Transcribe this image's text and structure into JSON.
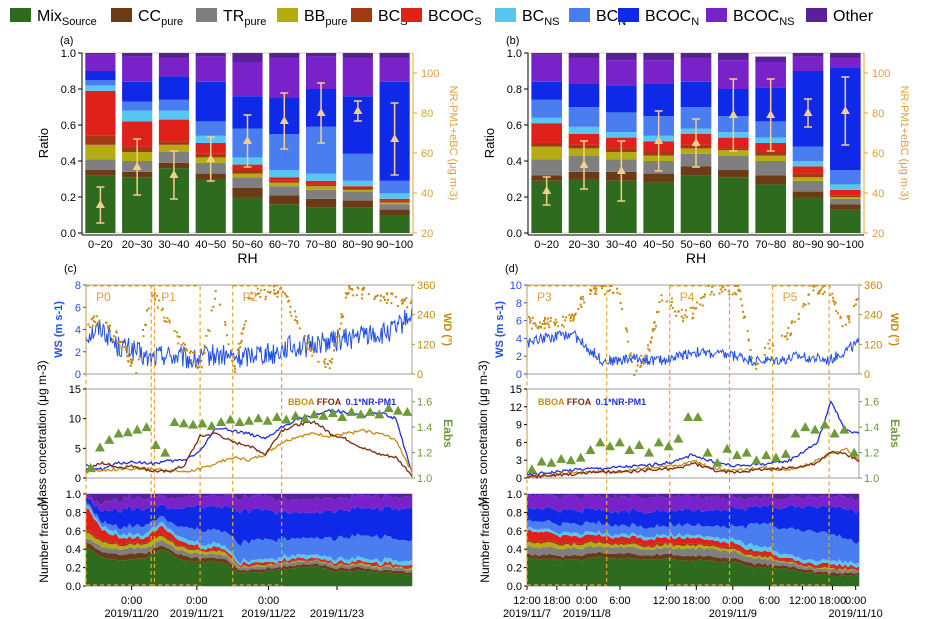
{
  "legend": [
    {
      "label": "Mix",
      "sub": "Source",
      "color": "#2e6b1f"
    },
    {
      "label": "CC",
      "sub": "pure",
      "color": "#6b3a17"
    },
    {
      "label": "TR",
      "sub": "pure",
      "color": "#7f7f7f"
    },
    {
      "label": "BB",
      "sub": "pure",
      "color": "#b4ac10"
    },
    {
      "label": "BC",
      "sub": "S",
      "color": "#a13a13"
    },
    {
      "label": "BCOC",
      "sub": "S",
      "color": "#e0201b"
    },
    {
      "label": "BC",
      "sub": "NS",
      "color": "#58c6f2"
    },
    {
      "label": "BC",
      "sub": "N",
      "color": "#4a7ef0"
    },
    {
      "label": "BCOC",
      "sub": "N",
      "color": "#0f29e8"
    },
    {
      "label": "BCOC",
      "sub": "NS",
      "color": "#7a22c9"
    },
    {
      "label": "Other",
      "sub": "",
      "color": "#5a209a"
    }
  ],
  "panel_labels": {
    "a": "(a)",
    "b": "(b)",
    "c": "(c)",
    "d": "(d)"
  },
  "chart_data": [
    {
      "id": "a",
      "type": "bar",
      "stacked": true,
      "categories": [
        "0~20",
        "20~30",
        "30~40",
        "40~50",
        "50~60",
        "60~70",
        "70~80",
        "80~90",
        "90~100"
      ],
      "xlabel": "RH",
      "ylabel": "Ratio",
      "ylim": [
        0,
        1.0
      ],
      "yticks": [
        "0.0",
        "0.2",
        "0.4",
        "0.6",
        "0.8",
        "1.0"
      ],
      "y2label": "NR-PM1+eBC (μg m-3)",
      "y2lim": [
        20,
        110
      ],
      "y2ticks": [
        "20",
        "40",
        "60",
        "80",
        "100"
      ],
      "series": [
        {
          "name": "MixSource",
          "values": [
            0.32,
            0.31,
            0.36,
            0.3,
            0.2,
            0.16,
            0.14,
            0.14,
            0.1
          ]
        },
        {
          "name": "CCpure",
          "values": [
            0.03,
            0.03,
            0.03,
            0.03,
            0.05,
            0.05,
            0.05,
            0.04,
            0.03
          ]
        },
        {
          "name": "TRpure",
          "values": [
            0.06,
            0.06,
            0.06,
            0.06,
            0.06,
            0.05,
            0.05,
            0.05,
            0.03
          ]
        },
        {
          "name": "BBpure",
          "values": [
            0.08,
            0.05,
            0.04,
            0.03,
            0.02,
            0.02,
            0.02,
            0.01,
            0.01
          ]
        },
        {
          "name": "BCS",
          "values": [
            0.05,
            0.03,
            0.02,
            0.02,
            0.02,
            0.01,
            0.01,
            0.01,
            0.01
          ]
        },
        {
          "name": "BCOCS",
          "values": [
            0.25,
            0.14,
            0.12,
            0.06,
            0.03,
            0.02,
            0.02,
            0.01,
            0.01
          ]
        },
        {
          "name": "BCNS",
          "values": [
            0.03,
            0.06,
            0.05,
            0.04,
            0.04,
            0.04,
            0.04,
            0.03,
            0.03
          ]
        },
        {
          "name": "BCN",
          "values": [
            0.03,
            0.05,
            0.06,
            0.08,
            0.16,
            0.2,
            0.26,
            0.15,
            0.07
          ]
        },
        {
          "name": "BCOCN",
          "values": [
            0.05,
            0.11,
            0.13,
            0.22,
            0.18,
            0.2,
            0.21,
            0.32,
            0.55
          ]
        },
        {
          "name": "BCOCNS",
          "values": [
            0.09,
            0.14,
            0.1,
            0.14,
            0.19,
            0.22,
            0.18,
            0.21,
            0.13
          ]
        },
        {
          "name": "Other",
          "values": [
            0.01,
            0.02,
            0.03,
            0.02,
            0.05,
            0.03,
            0.02,
            0.03,
            0.03
          ]
        }
      ],
      "secondary": {
        "mean": [
          34,
          53,
          49,
          57,
          66,
          76,
          80,
          81,
          67
        ],
        "err": [
          9,
          14,
          12,
          11,
          13,
          14,
          15,
          5,
          18
        ]
      }
    },
    {
      "id": "b",
      "type": "bar",
      "stacked": true,
      "categories": [
        "0~20",
        "20~30",
        "30~40",
        "40~50",
        "50~60",
        "60~70",
        "70~80",
        "80~90",
        "90~100"
      ],
      "xlabel": "RH",
      "ylabel": "Ratio",
      "ylim": [
        0,
        1.0
      ],
      "yticks": [
        "0.0",
        "0.2",
        "0.4",
        "0.6",
        "0.8",
        "1.0"
      ],
      "y2label": "NR-PM1+eBC (μg m-3)",
      "y2lim": [
        20,
        110
      ],
      "y2ticks": [
        "20",
        "40",
        "60",
        "80",
        "100"
      ],
      "series": [
        {
          "name": "MixSource",
          "values": [
            0.29,
            0.3,
            0.29,
            0.28,
            0.32,
            0.31,
            0.27,
            0.2,
            0.13
          ]
        },
        {
          "name": "CCpure",
          "values": [
            0.03,
            0.04,
            0.05,
            0.05,
            0.05,
            0.04,
            0.05,
            0.03,
            0.03
          ]
        },
        {
          "name": "TRpure",
          "values": [
            0.09,
            0.09,
            0.07,
            0.07,
            0.07,
            0.08,
            0.08,
            0.06,
            0.03
          ]
        },
        {
          "name": "BBpure",
          "values": [
            0.07,
            0.04,
            0.04,
            0.03,
            0.03,
            0.03,
            0.03,
            0.02,
            0.01
          ]
        },
        {
          "name": "BCS",
          "values": [
            0.02,
            0.02,
            0.02,
            0.02,
            0.02,
            0.01,
            0.02,
            0.02,
            0.01
          ]
        },
        {
          "name": "BCOCS",
          "values": [
            0.11,
            0.06,
            0.06,
            0.06,
            0.06,
            0.06,
            0.05,
            0.04,
            0.03
          ]
        },
        {
          "name": "BCNS",
          "values": [
            0.03,
            0.04,
            0.03,
            0.03,
            0.03,
            0.03,
            0.03,
            0.03,
            0.03
          ]
        },
        {
          "name": "BCN",
          "values": [
            0.1,
            0.11,
            0.11,
            0.11,
            0.12,
            0.09,
            0.09,
            0.08,
            0.08
          ]
        },
        {
          "name": "BCOCN",
          "values": [
            0.1,
            0.13,
            0.15,
            0.18,
            0.14,
            0.15,
            0.19,
            0.42,
            0.57
          ]
        },
        {
          "name": "BCOCNS",
          "values": [
            0.15,
            0.14,
            0.14,
            0.13,
            0.13,
            0.16,
            0.14,
            0.08,
            0.05
          ]
        },
        {
          "name": "Other",
          "values": [
            0.01,
            0.03,
            0.04,
            0.04,
            0.03,
            0.04,
            0.03,
            0.02,
            0.03
          ]
        }
      ],
      "secondary": {
        "mean": [
          41,
          54,
          51,
          66,
          65,
          79,
          79,
          80,
          81
        ],
        "err": [
          7,
          12,
          15,
          15,
          12,
          18,
          18,
          7,
          17
        ]
      }
    },
    {
      "id": "c",
      "type": "line",
      "period_labels": [
        "P0",
        "P1",
        "P2"
      ],
      "date_ticks": [
        {
          "line1": "0:00",
          "line2": "2019/11/20"
        },
        {
          "line1": "0:00",
          "line2": "2019/11/21"
        },
        {
          "line1": "0:00",
          "line2": "2019/11/22"
        },
        {
          "line1": "",
          "line2": "2019/11/23"
        }
      ],
      "top": {
        "ylabel": "WS (m s-1)",
        "ylim": [
          0,
          8
        ],
        "yticks": [
          "0",
          "2",
          "4",
          "6",
          "8"
        ],
        "y2label": "WD (°)",
        "y2lim": [
          0,
          360
        ],
        "y2ticks": [
          "0",
          "120",
          "240",
          "360"
        ]
      },
      "middle": {
        "ylabel": "Mass concetration (μg m-3)",
        "ylim": [
          0,
          15
        ],
        "yticks": [
          "0",
          "5",
          "10",
          "15"
        ],
        "y2label": "Eabs",
        "y2lim": [
          1.0,
          1.7
        ],
        "y2ticks": [
          "1.0",
          "1.2",
          "1.4",
          "1.6"
        ],
        "series_labels": [
          {
            "name": "BBOA",
            "color": "#c98a14"
          },
          {
            "name": "FFOA",
            "color": "#7a2b10"
          },
          {
            "name": "0.1*NR-PM1",
            "color": "#1e2fe0"
          }
        ],
        "eabs": [
          1.08,
          1.24,
          1.3,
          1.35,
          1.36,
          1.38,
          1.4,
          1.26,
          1.2,
          1.44,
          1.43,
          1.42,
          1.43,
          1.41,
          1.44,
          1.46,
          1.44,
          1.45,
          1.47,
          1.45,
          1.48,
          1.46,
          1.49,
          1.47,
          1.5,
          1.49,
          1.51,
          1.48,
          1.52,
          1.5,
          1.52,
          1.5,
          1.55,
          1.53,
          1.52
        ]
      },
      "bottom": {
        "ylabel": "Number fraction",
        "ylim": [
          0,
          1.0
        ],
        "yticks": [
          "0.0",
          "0.2",
          "0.4",
          "0.6",
          "0.8",
          "1.0"
        ]
      }
    },
    {
      "id": "d",
      "type": "line",
      "period_labels": [
        "P3",
        "P4",
        "P5"
      ],
      "date_ticks": [
        {
          "line1": "12:00",
          "line2": "2019/11/7"
        },
        {
          "line1": "18:00",
          "line2": ""
        },
        {
          "line1": "0:00",
          "line2": "2019/11/8"
        },
        {
          "line1": "6:00",
          "line2": ""
        },
        {
          "line1": "12:00",
          "line2": ""
        },
        {
          "line1": "18:00",
          "line2": ""
        },
        {
          "line1": "0:00",
          "line2": "2019/11/9"
        },
        {
          "line1": "6:00",
          "line2": ""
        },
        {
          "line1": "12:00",
          "line2": ""
        },
        {
          "line1": "18:00",
          "line2": ""
        },
        {
          "line1": "0:00",
          "line2": "2019/11/10"
        }
      ],
      "top": {
        "ylabel": "WS (m s-1)",
        "ylim": [
          0,
          10
        ],
        "yticks": [
          "0",
          "2",
          "4",
          "6",
          "8",
          "10"
        ],
        "y2label": "WD (°)",
        "y2lim": [
          0,
          360
        ],
        "y2ticks": [
          "0",
          "120",
          "240",
          "360"
        ]
      },
      "middle": {
        "ylabel": "Mass concetration (μg m-3)",
        "ylim": [
          0,
          15
        ],
        "yticks": [
          "0",
          "3",
          "6",
          "9",
          "12",
          "15"
        ],
        "y2label": "Eabs",
        "y2lim": [
          1.0,
          1.7
        ],
        "y2ticks": [
          "1.0",
          "1.2",
          "1.4",
          "1.6"
        ],
        "series_labels": [
          {
            "name": "BBOA",
            "color": "#c98a14"
          },
          {
            "name": "FFOA",
            "color": "#7a2b10"
          },
          {
            "name": "0.1*NR-PM1",
            "color": "#1e2fe0"
          }
        ],
        "eabs": [
          1.07,
          1.13,
          1.12,
          1.15,
          1.14,
          1.16,
          1.22,
          1.28,
          1.25,
          1.28,
          1.22,
          1.26,
          1.2,
          1.28,
          1.25,
          1.31,
          1.48,
          1.48,
          1.2,
          1.12,
          1.23,
          1.18,
          1.2,
          1.14,
          1.18,
          1.16,
          1.19,
          1.35,
          1.4,
          1.38,
          1.42,
          1.35,
          1.38,
          1.2
        ]
      },
      "bottom": {
        "ylabel": "Number fraction",
        "ylim": [
          0,
          1.0
        ],
        "yticks": [
          "0.0",
          "0.2",
          "0.4",
          "0.6",
          "0.8",
          "1.0"
        ]
      }
    }
  ]
}
